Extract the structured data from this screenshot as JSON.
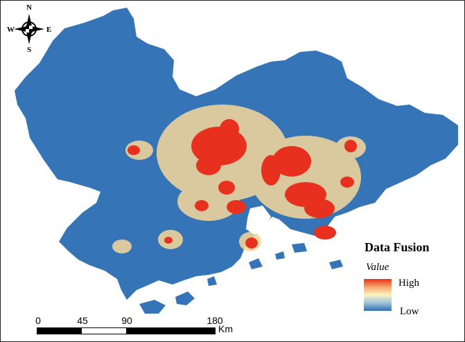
{
  "compass": {
    "north": "N",
    "south": "S",
    "east": "E",
    "west": "W"
  },
  "legend": {
    "title": "Data Fusion",
    "subtitle": "Value",
    "high_label": "High",
    "low_label": "Low",
    "color_high": "#e8301e",
    "color_mid": "#fbf4c0",
    "color_low": "#2e6fb3"
  },
  "scale_bar": {
    "ticks": [
      "0",
      "45",
      "90",
      "180"
    ],
    "unit": "Km"
  },
  "map": {
    "base_color": "#3574b7",
    "urban_color": "#e8301e",
    "fringe_color": "#f7d79a"
  }
}
